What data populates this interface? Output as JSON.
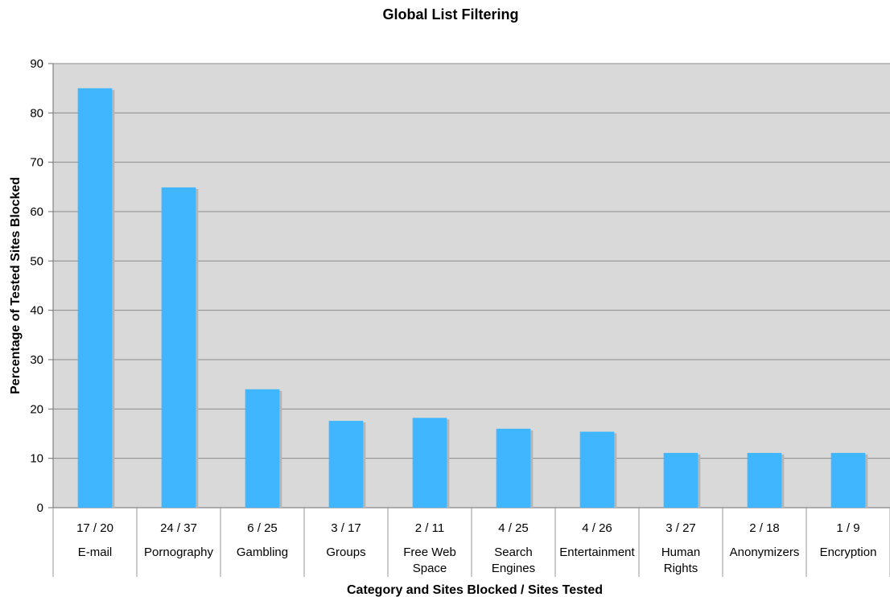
{
  "chart_data": {
    "type": "bar",
    "title": "Global List Filtering",
    "xlabel": "Category and Sites Blocked / Sites Tested",
    "ylabel": "Percentage of Tested Sites Blocked",
    "ylim": [
      0,
      90
    ],
    "yticks": [
      0,
      10,
      20,
      30,
      40,
      50,
      60,
      70,
      80,
      90
    ],
    "grid": true,
    "legend": "none",
    "categories": [
      {
        "ratio": "17 / 20",
        "name": [
          "E-mail"
        ]
      },
      {
        "ratio": "24 / 37",
        "name": [
          "Pornography"
        ]
      },
      {
        "ratio": "6 / 25",
        "name": [
          "Gambling"
        ]
      },
      {
        "ratio": "3 / 17",
        "name": [
          "Groups"
        ]
      },
      {
        "ratio": "2 / 11",
        "name": [
          "Free Web",
          "Space"
        ]
      },
      {
        "ratio": "4 / 25",
        "name": [
          "Search",
          "Engines"
        ]
      },
      {
        "ratio": "4 / 26",
        "name": [
          "Entertainment"
        ]
      },
      {
        "ratio": "3 / 27",
        "name": [
          "Human",
          "Rights"
        ]
      },
      {
        "ratio": "2 / 18",
        "name": [
          "Anonymizers"
        ]
      },
      {
        "ratio": "1 / 9",
        "name": [
          "Encryption"
        ]
      }
    ],
    "values": [
      85,
      64.9,
      24,
      17.6,
      18.2,
      16,
      15.4,
      11.1,
      11.1,
      11.1
    ],
    "colors": {
      "bar": "#3fb6ff",
      "bar_shadow": "#b5b5b5",
      "plot_background": "#d9d9d9",
      "gridline": "#8c8c8c",
      "axis": "#6e6e6e"
    }
  }
}
